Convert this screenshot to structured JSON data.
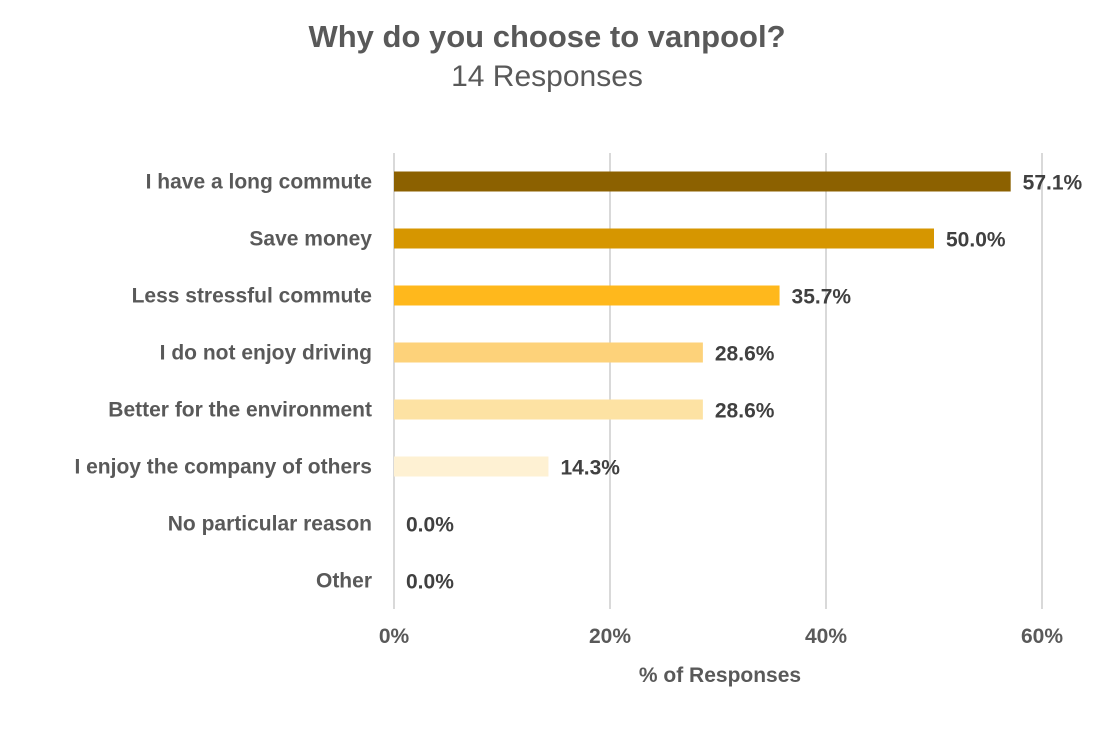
{
  "chart_data": {
    "type": "bar",
    "orientation": "horizontal",
    "title": "Why do you choose to vanpool?",
    "subtitle": "14 Responses",
    "xlabel": "% of Responses",
    "ylabel": "",
    "xlim": [
      0,
      60
    ],
    "x_ticks": [
      0,
      20,
      40,
      60
    ],
    "x_tick_labels": [
      "0%",
      "20%",
      "40%",
      "60%"
    ],
    "grid": "vertical",
    "legend": "none",
    "categories": [
      "I have a long commute",
      "Save money",
      "Less stressful commute",
      "I do not enjoy driving",
      "Better for the environment",
      "I enjoy the company of others",
      "No particular reason",
      "Other"
    ],
    "values": [
      57.1,
      50.0,
      35.7,
      28.6,
      28.6,
      14.3,
      0.0,
      0.0
    ],
    "value_labels": [
      "57.1%",
      "50.0%",
      "35.7%",
      "28.6%",
      "28.6%",
      "14.3%",
      "0.0%",
      "0.0%"
    ],
    "colors": [
      "#8c6100",
      "#d69600",
      "#ffb81c",
      "#fdd27a",
      "#fde2a3",
      "#fef1d3",
      "#fef1d3",
      "#fef1d3"
    ]
  }
}
